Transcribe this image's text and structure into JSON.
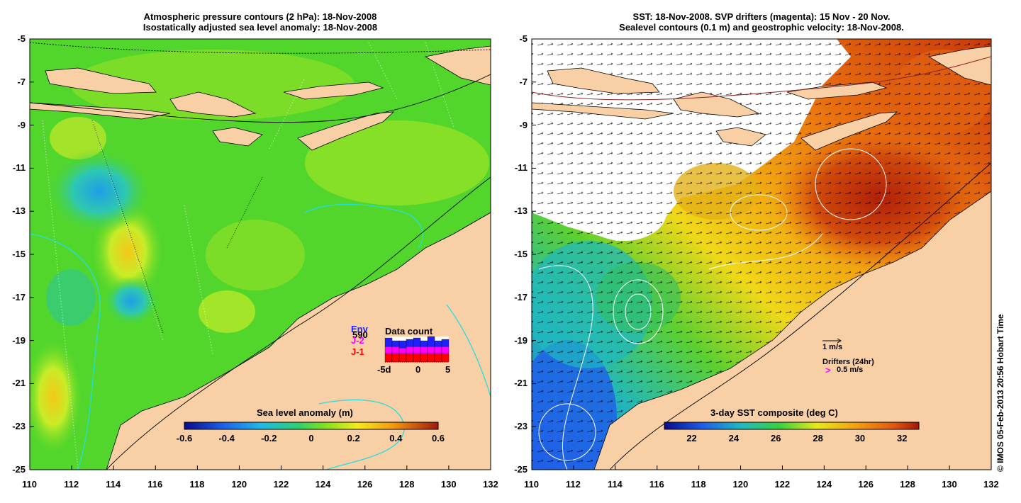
{
  "left_panel": {
    "title_line1": "Atmospheric pressure contours (2 hPa): 18-Nov-2008",
    "title_line2": "Isostatically adjusted sea level anomaly: 18-Nov-2008",
    "x_ticks": [
      "110",
      "112",
      "114",
      "116",
      "118",
      "120",
      "122",
      "124",
      "126",
      "128",
      "130",
      "132"
    ],
    "y_ticks": [
      "-5",
      "-7",
      "-9",
      "-11",
      "-13",
      "-15",
      "-17",
      "-19",
      "-21",
      "-23",
      "-25"
    ],
    "colorbar": {
      "title": "Sea level anomaly (m)",
      "ticks": [
        "-0.6",
        "-0.4",
        "-0.2",
        "0",
        "0.2",
        "0.4",
        "0.6"
      ],
      "range": [
        -0.6,
        0.6
      ]
    },
    "data_count": {
      "title": "Data count",
      "missions": [
        {
          "label": "Env",
          "color": "#1f1fff"
        },
        {
          "label": "J-2",
          "color": "#ff00ff"
        },
        {
          "label": "J-1",
          "color": "#ff0000"
        }
      ],
      "count_value": "590",
      "x_ticks": [
        "-5d",
        "0",
        "5"
      ]
    }
  },
  "right_panel": {
    "title_line1": "SST: 18-Nov-2008. SVP drifters (magenta): 15 Nov - 20 Nov.",
    "title_line2": "Sealevel contours (0.1 m) and geostrophic velocity: 18-Nov-2008.",
    "x_ticks": [
      "110",
      "112",
      "114",
      "116",
      "118",
      "120",
      "122",
      "124",
      "126",
      "128",
      "130",
      "132"
    ],
    "y_ticks": [
      "-5",
      "-7",
      "-9",
      "-11",
      "-13",
      "-15",
      "-17",
      "-19",
      "-21",
      "-23",
      "-25"
    ],
    "colorbar": {
      "title": "3-day SST composite (deg C)",
      "ticks": [
        "22",
        "24",
        "26",
        "28",
        "30",
        "32"
      ],
      "range": [
        20.7,
        32.8
      ]
    },
    "legend": {
      "velocity_scale": "1 m/s",
      "drifters_label": "Drifters (24hr)",
      "drifter_symbol": ">",
      "drifter_scale": "0.5 m/s"
    }
  },
  "credit": "© IMOS 05-Feb-2013 20:56 Hobart Time",
  "colors": {
    "land": "#f9cfa6",
    "ocean_green": "#4fd72a",
    "sst_orange": "#f07c10",
    "sst_red": "#c22a08",
    "contour_cyan": "#22dede"
  }
}
